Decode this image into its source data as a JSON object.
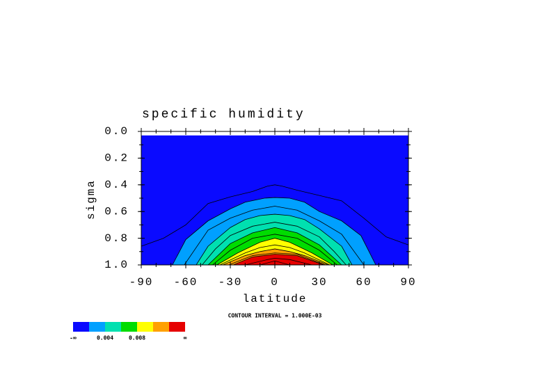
{
  "chart_data": {
    "type": "contour",
    "title": "specific humidity",
    "xlabel": "latitude",
    "ylabel": "sigma",
    "annotation": "CONTOUR INTERVAL = 1.000E-03",
    "xlim": [
      -90,
      90
    ],
    "xticks": [
      -90,
      -60,
      -30,
      0,
      30,
      60,
      90
    ],
    "x_minor_step": 10,
    "ylim": [
      0,
      1
    ],
    "y_inverted": true,
    "yticks": [
      {
        "value": 0,
        "label": "0.0"
      },
      0.2,
      0.4,
      0.6,
      0.8,
      {
        "value": 1,
        "label": "1.0"
      }
    ],
    "y_minor_step": 0.1,
    "field_ylim": [
      0.03,
      1
    ],
    "shade_levels": [
      0.002,
      0.004,
      0.006,
      0.008,
      0.01,
      0.012
    ],
    "shade_colors": [
      "#0a0aff",
      "#00a0ff",
      "#00e0b0",
      "#00dc00",
      "#ffff00",
      "#ffa000",
      "#e60000"
    ],
    "colorbar_low_label": "-∞",
    "colorbar_high_label": "∞",
    "colorbar_ticks": [
      0.004,
      0.008
    ],
    "contours": [
      {
        "level": 0.001,
        "lat": [
          -90,
          -75,
          -60,
          -45,
          -30,
          -15,
          -5,
          0,
          5,
          15,
          30,
          45,
          60,
          75,
          90
        ],
        "sigma": [
          0.86,
          0.8,
          0.7,
          0.54,
          0.49,
          0.45,
          0.41,
          0.4,
          0.41,
          0.44,
          0.48,
          0.52,
          0.65,
          0.79,
          0.85
        ]
      },
      {
        "level": 0.002,
        "lat": [
          -69,
          -60,
          -45,
          -30,
          -20,
          -7,
          0,
          10,
          20,
          30,
          45,
          58,
          68
        ],
        "sigma": [
          1,
          0.81,
          0.67,
          0.58,
          0.53,
          0.5,
          0.495,
          0.5,
          0.53,
          0.6,
          0.67,
          0.78,
          1
        ]
      },
      {
        "level": 0.003,
        "lat": [
          -61,
          -45,
          -30,
          -15,
          0,
          15,
          30,
          45,
          60
        ],
        "sigma": [
          1,
          0.74,
          0.65,
          0.59,
          0.56,
          0.59,
          0.67,
          0.77,
          1
        ]
      },
      {
        "level": 0.004,
        "lat": [
          -53,
          -45,
          -30,
          -20,
          -10,
          0,
          10,
          20,
          30,
          45,
          52
        ],
        "sigma": [
          1,
          0.86,
          0.72,
          0.66,
          0.63,
          0.62,
          0.63,
          0.66,
          0.73,
          0.86,
          1
        ]
      },
      {
        "level": 0.005,
        "lat": [
          -49,
          -40,
          -30,
          -15,
          0,
          15,
          30,
          40,
          48
        ],
        "sigma": [
          1,
          0.88,
          0.78,
          0.71,
          0.68,
          0.71,
          0.79,
          0.9,
          1
        ]
      },
      {
        "level": 0.006,
        "lat": [
          -45,
          -30,
          -15,
          0,
          15,
          30,
          45
        ],
        "sigma": [
          1,
          0.84,
          0.76,
          0.72,
          0.76,
          0.85,
          1
        ]
      },
      {
        "level": 0.007,
        "lat": [
          -42,
          -30,
          -15,
          0,
          15,
          30,
          42
        ],
        "sigma": [
          1,
          0.89,
          0.8,
          0.77,
          0.8,
          0.89,
          1
        ]
      },
      {
        "level": 0.008,
        "lat": [
          -39,
          -25,
          -10,
          0,
          10,
          25,
          39
        ],
        "sigma": [
          1,
          0.91,
          0.83,
          0.8,
          0.83,
          0.91,
          1
        ]
      },
      {
        "level": 0.009,
        "lat": [
          -37,
          -20,
          -10,
          0,
          10,
          20,
          37
        ],
        "sigma": [
          1,
          0.91,
          0.87,
          0.85,
          0.87,
          0.91,
          1
        ]
      },
      {
        "level": 0.01,
        "lat": [
          -35,
          -20,
          -10,
          0,
          10,
          20,
          36
        ],
        "sigma": [
          1,
          0.93,
          0.9,
          0.88,
          0.9,
          0.93,
          1
        ]
      },
      {
        "level": 0.011,
        "lat": [
          -31,
          -15,
          0,
          15,
          34
        ],
        "sigma": [
          1,
          0.93,
          0.91,
          0.92,
          1
        ]
      },
      {
        "level": 0.012,
        "lat": [
          -28,
          -15,
          0,
          15,
          33
        ],
        "sigma": [
          1,
          0.94,
          0.92,
          0.93,
          1
        ]
      },
      {
        "level": 0.013,
        "lat": [
          -20,
          -5,
          0,
          10,
          25
        ],
        "sigma": [
          1,
          0.96,
          0.95,
          0.96,
          1
        ]
      },
      {
        "level": 0.014,
        "lat": [
          -10,
          0,
          10
        ],
        "sigma": [
          1,
          0.97,
          1
        ]
      }
    ]
  }
}
